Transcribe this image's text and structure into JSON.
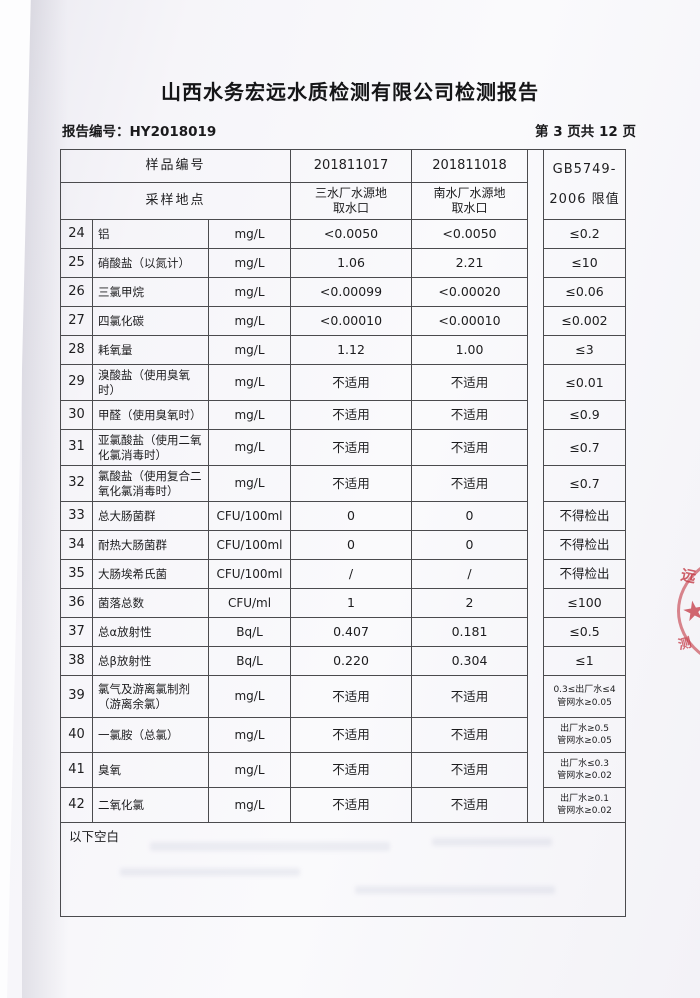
{
  "page": {
    "title": "山西水务宏远水质检测有限公司检测报告",
    "report_no": "报告编号：HY2018019",
    "page_indicator": "第 3 页共 12 页"
  },
  "table": {
    "header": {
      "sample_id_label": "样品编号",
      "sampling_site_label": "采样地点",
      "sample1_id": "201811017",
      "sample2_id": "201811018",
      "sample1_site": "三水厂水源地\n取水口",
      "sample2_site": "南水厂水源地\n取水口",
      "limit_header": "GB5749-\n2006 限值"
    },
    "rows": [
      {
        "no": "24",
        "name": "铝",
        "unit": "mg/L",
        "v1": "<0.0050",
        "v2": "<0.0050",
        "limit": "≤0.2"
      },
      {
        "no": "25",
        "name": "硝酸盐（以氮计）",
        "unit": "mg/L",
        "v1": "1.06",
        "v2": "2.21",
        "limit": "≤10"
      },
      {
        "no": "26",
        "name": "三氯甲烷",
        "unit": "mg/L",
        "v1": "<0.00099",
        "v2": "<0.00020",
        "limit": "≤0.06"
      },
      {
        "no": "27",
        "name": "四氯化碳",
        "unit": "mg/L",
        "v1": "<0.00010",
        "v2": "<0.00010",
        "limit": "≤0.002"
      },
      {
        "no": "28",
        "name": "耗氧量",
        "unit": "mg/L",
        "v1": "1.12",
        "v2": "1.00",
        "limit": "≤3"
      },
      {
        "no": "29",
        "name": "溴酸盐（使用臭氧\n时）",
        "unit": "mg/L",
        "v1": "不适用",
        "v2": "不适用",
        "limit": "≤0.01"
      },
      {
        "no": "30",
        "name": "甲醛（使用臭氧时）",
        "unit": "mg/L",
        "v1": "不适用",
        "v2": "不适用",
        "limit": "≤0.9"
      },
      {
        "no": "31",
        "name": "亚氯酸盐（使用二氧\n化氯消毒时）",
        "unit": "mg/L",
        "v1": "不适用",
        "v2": "不适用",
        "limit": "≤0.7"
      },
      {
        "no": "32",
        "name": "氯酸盐（使用复合二\n氧化氯消毒时）",
        "unit": "mg/L",
        "v1": "不适用",
        "v2": "不适用",
        "limit": "≤0.7"
      },
      {
        "no": "33",
        "name": "总大肠菌群",
        "unit": "CFU/100ml",
        "v1": "0",
        "v2": "0",
        "limit": "不得检出"
      },
      {
        "no": "34",
        "name": "耐热大肠菌群",
        "unit": "CFU/100ml",
        "v1": "0",
        "v2": "0",
        "limit": "不得检出"
      },
      {
        "no": "35",
        "name": "大肠埃希氏菌",
        "unit": "CFU/100ml",
        "v1": "/",
        "v2": "/",
        "limit": "不得检出"
      },
      {
        "no": "36",
        "name": "菌落总数",
        "unit": "CFU/ml",
        "v1": "1",
        "v2": "2",
        "limit": "≤100"
      },
      {
        "no": "37",
        "name": "总α放射性",
        "unit": "Bq/L",
        "v1": "0.407",
        "v2": "0.181",
        "limit": "≤0.5"
      },
      {
        "no": "38",
        "name": "总β放射性",
        "unit": "Bq/L",
        "v1": "0.220",
        "v2": "0.304",
        "limit": "≤1"
      },
      {
        "no": "39",
        "name": "氯气及游离氯制剂\n（游离余氯）",
        "unit": "mg/L",
        "v1": "不适用",
        "v2": "不适用",
        "limit": "0.3≤出厂水≤4",
        "limit2": "管网水≥0.05"
      },
      {
        "no": "40",
        "name": "一氯胺（总氯）",
        "unit": "mg/L",
        "v1": "不适用",
        "v2": "不适用",
        "limit": "出厂水≥0.5",
        "limit2": "管网水≥0.05"
      },
      {
        "no": "41",
        "name": "臭氧",
        "unit": "mg/L",
        "v1": "不适用",
        "v2": "不适用",
        "limit": "出厂水≤0.3",
        "limit2": "管网水≥0.02"
      },
      {
        "no": "42",
        "name": "二氧化氯",
        "unit": "mg/L",
        "v1": "不适用",
        "v2": "不适用",
        "limit": "出厂水≥0.1",
        "limit2": "管网水≥0.02"
      }
    ],
    "footer_note": "以下空白"
  },
  "seal": {
    "char_top": "远",
    "star": "★",
    "char_bottom": "测",
    "color": "#c53e49"
  }
}
